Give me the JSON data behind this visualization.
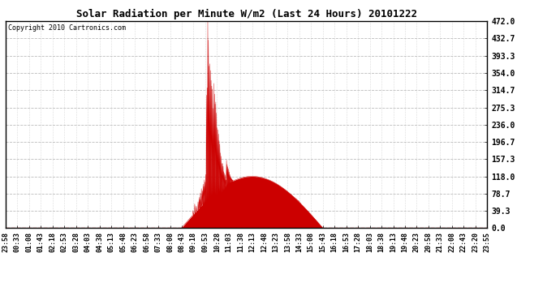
{
  "title": "Solar Radiation per Minute W/m2 (Last 24 Hours) 20101222",
  "copyright": "Copyright 2010 Cartronics.com",
  "bg_color": "#ffffff",
  "plot_bg_color": "#ffffff",
  "fill_color": "#cc0000",
  "line_color": "#cc0000",
  "grid_color": "#bbbbbb",
  "yticks": [
    0.0,
    39.3,
    78.7,
    118.0,
    157.3,
    196.7,
    236.0,
    275.3,
    314.7,
    354.0,
    393.3,
    432.7,
    472.0
  ],
  "ymax": 472.0,
  "ymin": 0.0,
  "num_minutes": 1440,
  "x_tick_labels": [
    "23:58",
    "00:33",
    "01:08",
    "01:43",
    "02:18",
    "02:53",
    "03:28",
    "04:03",
    "04:38",
    "05:13",
    "05:48",
    "06:23",
    "06:58",
    "07:33",
    "08:08",
    "08:43",
    "09:18",
    "09:53",
    "10:28",
    "11:03",
    "11:38",
    "12:13",
    "12:48",
    "13:23",
    "13:58",
    "14:33",
    "15:08",
    "15:43",
    "16:18",
    "16:53",
    "17:28",
    "18:03",
    "18:38",
    "19:13",
    "19:48",
    "20:23",
    "20:58",
    "21:33",
    "22:08",
    "22:43",
    "23:20",
    "23:55"
  ]
}
